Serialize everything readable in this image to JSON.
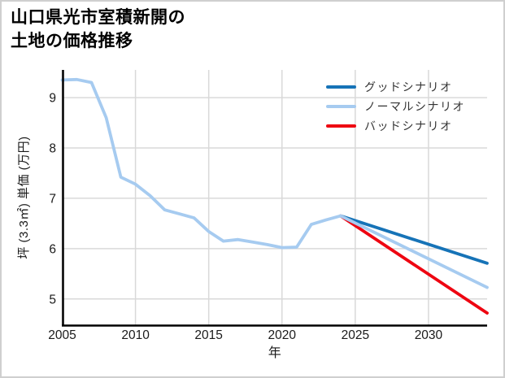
{
  "title": "山口県光市室積新開の\n土地の価格推移",
  "colors": {
    "good": "#1673b7",
    "normal": "#a6cbf0",
    "bad": "#ee0511",
    "grid": "#d9d9d9",
    "axis": "#000000",
    "tick_text": "#1a1a1a"
  },
  "chart_data": {
    "type": "line",
    "title": "山口県光市室積新開の土地の価格推移",
    "xlabel": "年",
    "ylabel": "坪 (3.3㎡) 単価 (万円)",
    "xlim": [
      2005,
      2034
    ],
    "ylim": [
      4.48,
      9.55
    ],
    "xticks": [
      2005,
      2010,
      2015,
      2020,
      2025,
      2030
    ],
    "yticks": [
      5,
      6,
      7,
      8,
      9
    ],
    "grid": true,
    "legend_position": "top-right",
    "series": [
      {
        "id": "history",
        "legend_label": null,
        "color_key": "normal",
        "x": [
          2005,
          2006,
          2007,
          2008,
          2009,
          2010,
          2011,
          2012,
          2013,
          2014,
          2015,
          2016,
          2017,
          2018,
          2019,
          2020,
          2021,
          2022,
          2023,
          2024
        ],
        "y": [
          9.35,
          9.36,
          9.3,
          8.6,
          7.42,
          7.28,
          7.05,
          6.77,
          6.69,
          6.61,
          6.34,
          6.15,
          6.18,
          6.13,
          6.08,
          6.02,
          6.03,
          6.48,
          6.57,
          6.65
        ]
      },
      {
        "id": "good",
        "legend_label": "グッドシナリオ",
        "color_key": "good",
        "x": [
          2024,
          2034
        ],
        "y": [
          6.65,
          5.71
        ]
      },
      {
        "id": "normal",
        "legend_label": "ノーマルシナリオ",
        "color_key": "normal",
        "x": [
          2024,
          2034
        ],
        "y": [
          6.65,
          5.23
        ]
      },
      {
        "id": "bad",
        "legend_label": "バッドシナリオ",
        "color_key": "bad",
        "x": [
          2024,
          2034
        ],
        "y": [
          6.65,
          4.72
        ]
      }
    ]
  }
}
